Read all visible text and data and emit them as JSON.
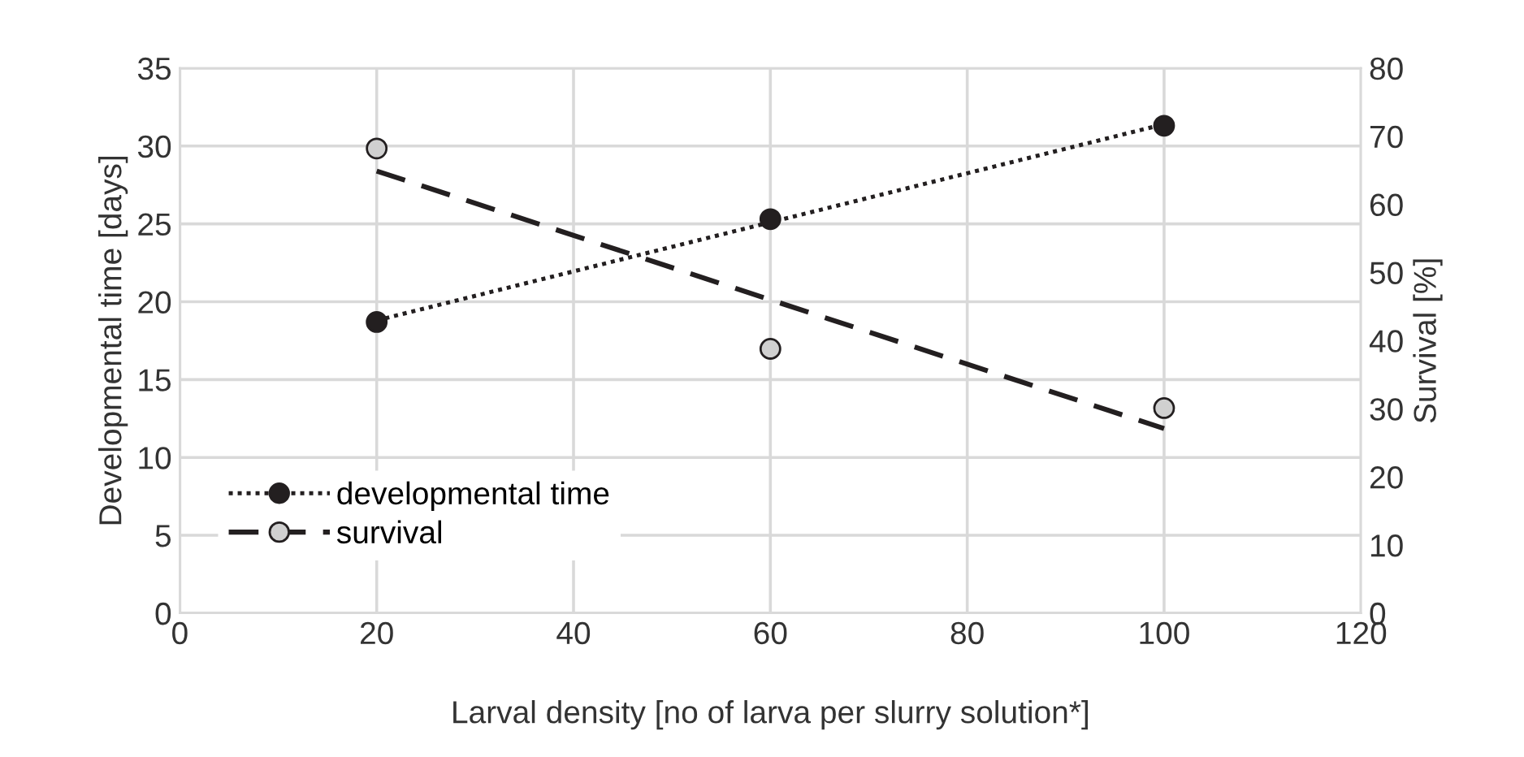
{
  "chart_data": {
    "type": "scatter",
    "xlabel": "Larval density [no of larva per slurry solution*]",
    "ylabel": "Developmental time [days]",
    "y2label": "Survival [%]",
    "xlim": [
      0,
      120
    ],
    "xticks": [
      0,
      20,
      40,
      60,
      80,
      100,
      120
    ],
    "ylim": [
      0,
      35
    ],
    "yticks": [
      0,
      5,
      10,
      15,
      20,
      25,
      30,
      35
    ],
    "y2lim": [
      0,
      80
    ],
    "y2ticks": [
      0,
      10,
      20,
      30,
      40,
      50,
      60,
      70,
      80
    ],
    "grid": true,
    "legend": "bottom left",
    "series": [
      {
        "name": "developmental time",
        "marker": "circle",
        "color": "#231f20",
        "x": [
          20,
          60,
          100
        ],
        "values": [
          18.7,
          25.3,
          31.3
        ]
      },
      {
        "type": "line",
        "marker": "none",
        "line_style": "dotted",
        "color": "#231f20",
        "x": [
          20,
          100
        ],
        "values": [
          18.8,
          31.4
        ]
      },
      {
        "name": "survival",
        "marker": "circle",
        "axis": "y2",
        "color": "#d0d0d0",
        "x": [
          20,
          60,
          100
        ],
        "values": [
          68.2,
          38.8,
          30.1
        ]
      },
      {
        "type": "line",
        "marker": "none",
        "axis": "y2",
        "line_style": "dashed",
        "color": "#231f20",
        "x": [
          20,
          100
        ],
        "values": [
          64.9,
          27.1
        ]
      }
    ]
  }
}
